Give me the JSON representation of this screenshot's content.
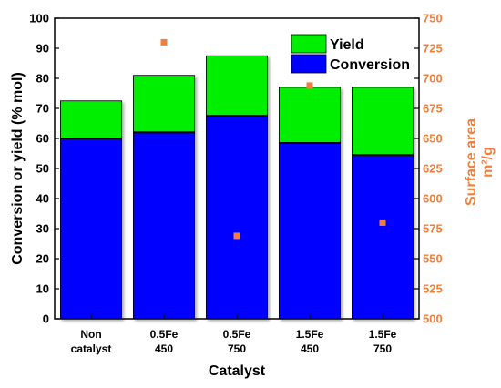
{
  "chart_data": {
    "type": "bar",
    "stacked": true,
    "categories": [
      [
        "Non",
        "catalyst"
      ],
      [
        "0.5Fe",
        "450"
      ],
      [
        "0.5Fe",
        "750"
      ],
      [
        "1.5Fe",
        "450"
      ],
      [
        "1.5Fe",
        "750"
      ]
    ],
    "series": [
      {
        "name": "Conversion",
        "color": "#0000ff",
        "values": [
          60,
          62,
          67.5,
          58.5,
          54.5
        ]
      },
      {
        "name": "Yield",
        "color": "#00ee00",
        "values": [
          12.5,
          19,
          20,
          18.5,
          22.5
        ]
      }
    ],
    "secondary_series": {
      "type": "scatter",
      "color": "#f07f3c",
      "values": [
        null,
        730,
        569,
        694,
        580
      ]
    },
    "xlabel": "Catalyst",
    "ylabel": "Conversion or yield (% mol)",
    "y2label_line1": "Surface area",
    "y2label_line2": "m²/g",
    "ylim": [
      0,
      100
    ],
    "y2lim": [
      500,
      750
    ],
    "yticks": [
      0,
      10,
      20,
      30,
      40,
      50,
      60,
      70,
      80,
      90,
      100
    ],
    "y2ticks": [
      500,
      525,
      550,
      575,
      600,
      625,
      650,
      675,
      700,
      725,
      750
    ],
    "legend": {
      "position": "top-right",
      "items": [
        {
          "label": "Yield",
          "color": "#00ee00"
        },
        {
          "label": "Conversion",
          "color": "#0000ff"
        }
      ]
    }
  }
}
